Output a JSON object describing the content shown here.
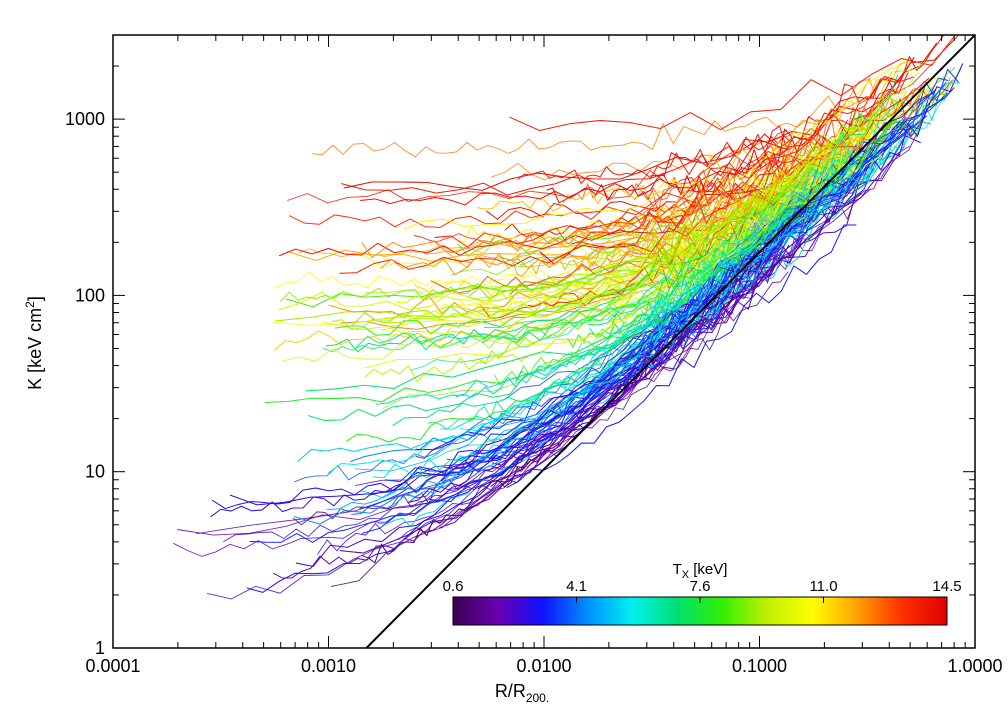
{
  "chart_data": {
    "type": "line",
    "title": "",
    "xlabel": "R/R",
    "xlabel_sub": "200.",
    "ylabel_main": "K [keV cm",
    "ylabel_sup": "2",
    "ylabel_end": "]",
    "xscale": "log",
    "yscale": "log",
    "xlim": [
      0.0001,
      1.0
    ],
    "ylim": [
      1,
      3000
    ],
    "xticks": [
      {
        "value": 0.0001,
        "label": "0.0001"
      },
      {
        "value": 0.001,
        "label": "0.0010"
      },
      {
        "value": 0.01,
        "label": "0.0100"
      },
      {
        "value": 0.1,
        "label": "0.1000"
      },
      {
        "value": 1.0,
        "label": "1.0000"
      }
    ],
    "yticks": [
      {
        "value": 1,
        "label": "1"
      },
      {
        "value": 10,
        "label": "10"
      },
      {
        "value": 100,
        "label": "100"
      },
      {
        "value": 1000,
        "label": "1000"
      }
    ],
    "grid": false,
    "reference_line": {
      "description": "black power-law line",
      "points": [
        [
          0.0015,
          1
        ],
        [
          1.0,
          3000
        ]
      ]
    },
    "colorbar": {
      "label": "T",
      "label_sub": "X",
      "label_unit": " [keV]",
      "min": 0.6,
      "max": 14.5,
      "ticks": [
        "0.6",
        "4.1",
        "7.6",
        "11.0",
        "14.5"
      ],
      "colormap": [
        "#3d0052",
        "#6a00b0",
        "#1010ff",
        "#0090ff",
        "#00f0f0",
        "#00e070",
        "#30f000",
        "#c0f000",
        "#ffff00",
        "#ffa000",
        "#ff3000",
        "#e00000"
      ]
    },
    "series_summary": {
      "count": 300,
      "note_color_variable": "T_X [keV]",
      "example_profiles": [
        {
          "T": 0.8,
          "points": [
            [
              0.0001,
              1.1
            ],
            [
              0.0005,
              1.6
            ],
            [
              0.002,
              2.6
            ],
            [
              0.01,
              6
            ],
            [
              0.05,
              15
            ],
            [
              0.12,
              35
            ]
          ]
        },
        {
          "T": 1.5,
          "points": [
            [
              0.0003,
              2.0
            ],
            [
              0.001,
              3.5
            ],
            [
              0.005,
              8
            ],
            [
              0.03,
              22
            ],
            [
              0.15,
              55
            ],
            [
              0.3,
              60
            ]
          ]
        },
        {
          "T": 3.0,
          "points": [
            [
              0.003,
              12
            ],
            [
              0.01,
              20
            ],
            [
              0.05,
              60
            ],
            [
              0.2,
              250
            ],
            [
              0.5,
              300
            ]
          ]
        },
        {
          "T": 5.5,
          "points": [
            [
              0.001,
              13
            ],
            [
              0.005,
              25
            ],
            [
              0.03,
              80
            ],
            [
              0.1,
              230
            ],
            [
              0.4,
              800
            ]
          ]
        },
        {
          "T": 7.5,
          "points": [
            [
              0.002,
              60
            ],
            [
              0.01,
              80
            ],
            [
              0.05,
              150
            ],
            [
              0.2,
              600
            ],
            [
              0.6,
              1500
            ]
          ]
        },
        {
          "T": 9.0,
          "points": [
            [
              0.0015,
              300
            ],
            [
              0.01,
              320
            ],
            [
              0.05,
              380
            ],
            [
              0.2,
              900
            ],
            [
              0.7,
              2200
            ]
          ]
        },
        {
          "T": 11.0,
          "points": [
            [
              0.003,
              550
            ],
            [
              0.02,
              700
            ],
            [
              0.08,
              500
            ],
            [
              0.3,
              1300
            ],
            [
              0.6,
              2500
            ]
          ]
        },
        {
          "T": 13.5,
          "points": [
            [
              0.0005,
              20
            ],
            [
              0.002,
              30
            ],
            [
              0.01,
              60
            ],
            [
              0.05,
              200
            ],
            [
              0.3,
              900
            ],
            [
              0.7,
              2000
            ]
          ]
        }
      ]
    }
  }
}
